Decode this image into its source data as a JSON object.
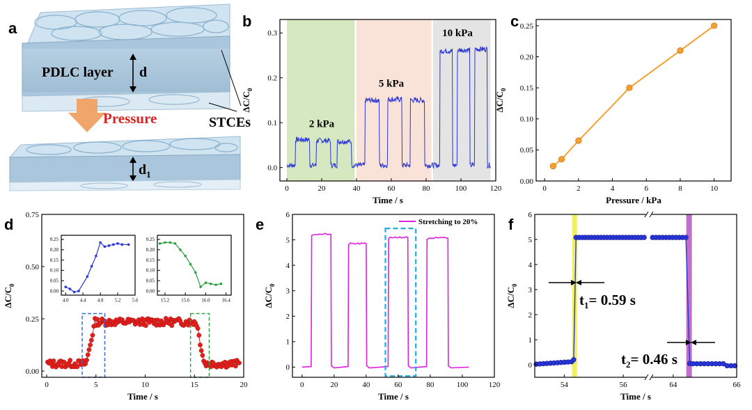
{
  "panel_labels": [
    "a",
    "b",
    "c",
    "d",
    "e",
    "f"
  ],
  "panel_a": {
    "layer_label": "PDLC layer",
    "thickness_label": "d",
    "thickness_label_2": "d",
    "thickness_sub": "1",
    "pressure_label": "Pressure",
    "electrode_label": "STCEs",
    "colors": {
      "layer": "#a9c6dc",
      "top": "#cfe3f1",
      "arrow": "#f0a56b",
      "pressure": "#e02020"
    }
  },
  "chart_data": [
    {
      "panel": "b",
      "type": "line",
      "xlabel": "Time / s",
      "ylabel": "ΔC/C0",
      "xlim": [
        -4,
        120
      ],
      "ylim": [
        -0.03,
        0.33
      ],
      "xticks": [
        0,
        20,
        40,
        60,
        80,
        100,
        120
      ],
      "yticks": [
        0.0,
        0.1,
        0.2,
        0.3
      ],
      "ytick_labels": [
        "0.0",
        "0.1",
        "0.2",
        "0.3"
      ],
      "regions": [
        {
          "x0": 0,
          "x1": 39,
          "color": "#d6e8c0",
          "label": "2 kPa",
          "label_x": 20,
          "label_y": 0.09
        },
        {
          "x0": 40,
          "x1": 83,
          "color": "#f9e2d8",
          "label": "5 kPa",
          "label_x": 60,
          "label_y": 0.18
        },
        {
          "x0": 84,
          "x1": 117,
          "color": "#e4e4e4",
          "label": "10 kPa",
          "label_x": 98,
          "label_y": 0.293
        }
      ],
      "series": [
        {
          "color": "#2a35d8",
          "pulses": [
            {
              "on": 5,
              "off": 13,
              "level": 0.062
            },
            {
              "on": 17,
              "off": 25,
              "level": 0.06
            },
            {
              "on": 29,
              "off": 37,
              "level": 0.058
            },
            {
              "on": 45,
              "off": 53,
              "level": 0.15
            },
            {
              "on": 58,
              "off": 66,
              "level": 0.152
            },
            {
              "on": 71,
              "off": 79,
              "level": 0.15
            },
            {
              "on": 88,
              "off": 95,
              "level": 0.26
            },
            {
              "on": 98,
              "off": 105,
              "level": 0.262
            },
            {
              "on": 108,
              "off": 115,
              "level": 0.264
            }
          ],
          "baseline": 0.005,
          "x_end": 117
        }
      ]
    },
    {
      "panel": "c",
      "type": "line",
      "xlabel": "Pressure / kPa",
      "ylabel": "ΔC/C0",
      "xlim": [
        -0.5,
        11
      ],
      "ylim": [
        0,
        0.26
      ],
      "xticks": [
        0,
        2,
        4,
        6,
        8,
        10
      ],
      "yticks": [
        0.0,
        0.05,
        0.1,
        0.15,
        0.2,
        0.25
      ],
      "ytick_labels": [
        "0.00",
        "0.05",
        "0.10",
        "0.15",
        "0.20",
        "0.25"
      ],
      "series": [
        {
          "color": "#f5a030",
          "x": [
            0.5,
            1,
            2,
            5,
            8,
            10
          ],
          "y": [
            0.024,
            0.035,
            0.065,
            0.15,
            0.21,
            0.25
          ]
        }
      ]
    },
    {
      "panel": "d",
      "type": "scatter",
      "xlabel": "Time / s",
      "ylabel": "ΔC/C0",
      "xlim": [
        -0.5,
        20
      ],
      "ylim": [
        -0.03,
        0.75
      ],
      "xticks": [
        0,
        5,
        10,
        15,
        20
      ],
      "yticks": [
        0.0,
        0.25,
        0.5,
        0.75
      ],
      "ytick_labels": [
        "0.00",
        "0.25",
        "0.50",
        "0.75"
      ],
      "series": [
        {
          "color": "#e0201c",
          "rise": [
            4.0,
            4.9
          ],
          "fall": [
            15.2,
            16.0
          ],
          "low": 0.035,
          "high": 0.235
        }
      ],
      "boxes": [
        {
          "x0": 3.6,
          "x1": 5.9,
          "y0": -0.03,
          "y1": 0.275,
          "color": "#3a6ad0"
        },
        {
          "x0": 14.6,
          "x1": 16.5,
          "y0": -0.03,
          "y1": 0.275,
          "color": "#2ea040"
        }
      ],
      "insets": [
        {
          "color": "#2a35d8",
          "xlim": [
            3.9,
            5.6
          ],
          "ylim": [
            -0.02,
            0.27
          ],
          "xticks": [
            4.0,
            4.4,
            4.8,
            5.2,
            5.6
          ],
          "xtick_labels": [
            "4.0",
            "4.4",
            "4.8",
            "5.2",
            "5.6"
          ],
          "yticks": [
            0.0,
            0.05,
            0.1,
            0.15,
            0.2,
            0.25
          ],
          "ytick_labels": [
            "0.00",
            "0.05",
            "0.10",
            "0.15",
            "0.20",
            "0.25"
          ],
          "x": [
            4.0,
            4.1,
            4.2,
            4.3,
            4.5,
            4.6,
            4.7,
            4.8,
            4.9,
            5.0,
            5.1,
            5.2,
            5.3,
            5.45
          ],
          "y": [
            0.02,
            0.01,
            -0.005,
            0.0,
            0.07,
            0.12,
            0.17,
            0.235,
            0.215,
            0.22,
            0.225,
            0.23,
            0.225,
            0.225
          ]
        },
        {
          "color": "#2ea040",
          "xlim": [
            15.05,
            16.5
          ],
          "ylim": [
            -0.02,
            0.27
          ],
          "xticks": [
            15.2,
            15.6,
            16.0,
            16.4
          ],
          "xtick_labels": [
            "15.2",
            "15.6",
            "16.0",
            "16.4"
          ],
          "yticks": [
            0.0,
            0.05,
            0.1,
            0.15,
            0.2,
            0.25
          ],
          "ytick_labels": [
            "0.00",
            "0.05",
            "0.10",
            "0.15",
            "0.20",
            "0.25"
          ],
          "x": [
            15.1,
            15.2,
            15.3,
            15.4,
            15.5,
            15.6,
            15.7,
            15.8,
            15.9,
            16.0,
            16.1,
            16.2,
            16.3
          ],
          "y": [
            0.23,
            0.235,
            0.235,
            0.23,
            0.2,
            0.17,
            0.13,
            0.09,
            0.02,
            0.04,
            0.035,
            0.03,
            0.035
          ]
        }
      ]
    },
    {
      "panel": "e",
      "type": "line",
      "xlabel": "Time / s",
      "ylabel": "ΔC/C0",
      "xlim": [
        -6,
        120
      ],
      "ylim": [
        -0.4,
        6
      ],
      "xticks": [
        0,
        20,
        40,
        60,
        80,
        100,
        120
      ],
      "yticks": [
        0,
        1,
        2,
        3,
        4,
        5,
        6
      ],
      "ytick_labels": [
        "0",
        "1",
        "2",
        "3",
        "4",
        "5",
        "6"
      ],
      "legend": "Stretching to 20%",
      "legend_color": "#e020e0",
      "box": {
        "x0": 52,
        "x1": 71,
        "y0": -0.35,
        "y1": 5.45,
        "color": "#22aadd"
      },
      "series": [
        {
          "color": "#e020e0",
          "pulses": [
            {
              "on": 6,
              "off": 18,
              "level": 5.22
            },
            {
              "on": 29,
              "off": 40,
              "level": 4.85
            },
            {
              "on": 54,
              "off": 66,
              "level": 5.1
            },
            {
              "on": 78,
              "off": 91,
              "level": 5.07
            }
          ],
          "baseline": 0.0,
          "x_end": 104
        }
      ]
    },
    {
      "panel": "f",
      "type": "scatter",
      "xlabel": "Time / s",
      "ylabel": "ΔC/C0",
      "xlim": [
        53,
        66
      ],
      "ylim": [
        -0.5,
        6
      ],
      "xticks": [
        54,
        56,
        64,
        66
      ],
      "yticks": [
        0,
        1,
        2,
        3,
        4,
        5,
        6
      ],
      "ytick_labels": [
        "0",
        "1",
        "2",
        "3",
        "4",
        "5",
        "6"
      ],
      "axis_break": true,
      "highlight_1": {
        "x": 54.35,
        "color": "#f0f060"
      },
      "highlight_2": {
        "x": 64.5,
        "color": "#c070c8"
      },
      "annot_1": {
        "text": "t",
        "sub": "1",
        "rest": "= 0.59 s"
      },
      "annot_2": {
        "text": "t",
        "sub": "2",
        "rest": "= 0.46 s"
      },
      "series": [
        {
          "color": "#2a35d8",
          "low": 0.02,
          "high": 5.08
        }
      ]
    }
  ]
}
